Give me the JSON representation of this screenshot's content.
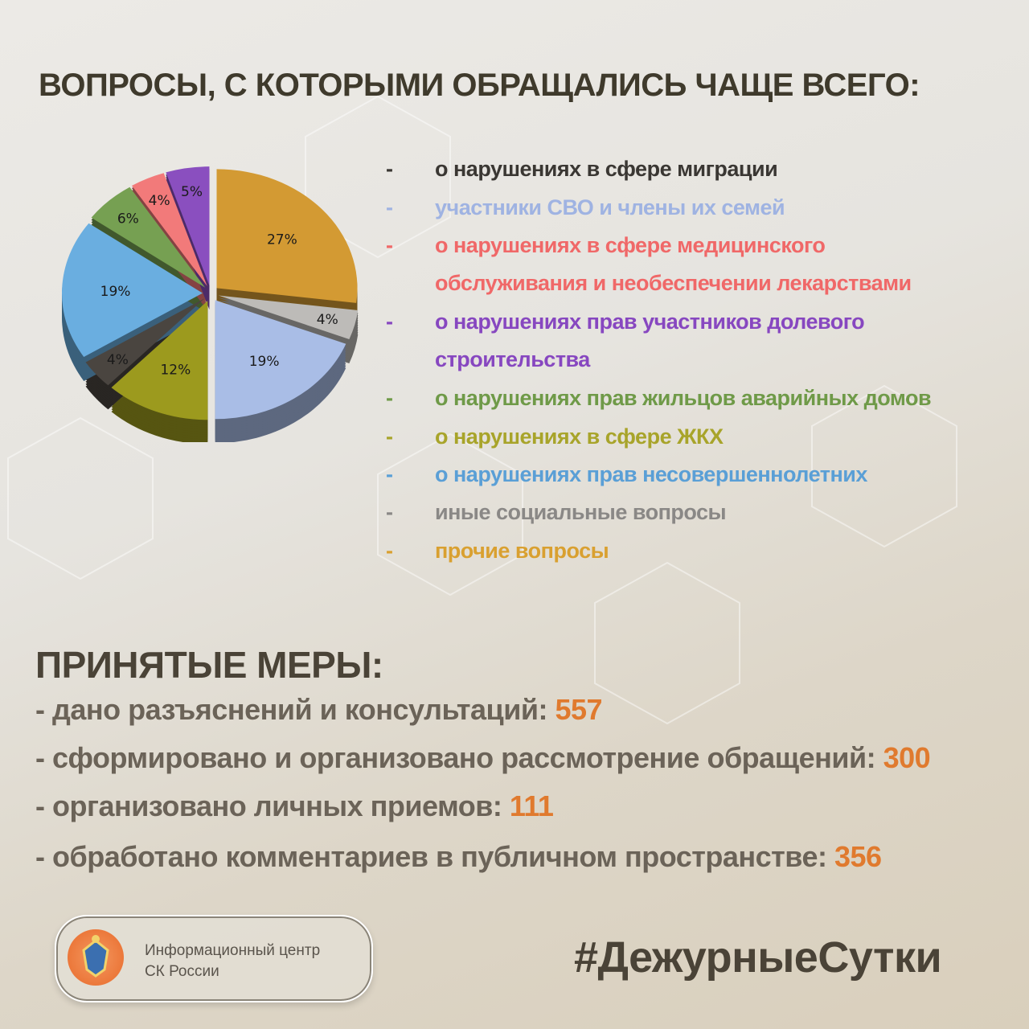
{
  "title": "ВОПРОСЫ, С КОТОРЫМИ ОБРАЩАЛИСЬ ЧАЩЕ ВСЕГО:",
  "chart_data": {
    "type": "pie",
    "style": "3d-exploded",
    "start": "12 o'clock, clockwise",
    "slices": [
      {
        "label": "прочие вопросы",
        "value": 27,
        "text": "27%",
        "color": "#d39a33"
      },
      {
        "label": "иные социальные вопросы",
        "value": 4,
        "text": "4%",
        "color": "#bdbbb8"
      },
      {
        "label": "участники СВО и члены их семей",
        "value": 19,
        "text": "19%",
        "color": "#a9bde6"
      },
      {
        "label": "о нарушениях в сфере ЖКХ",
        "value": 12,
        "text": "12%",
        "color": "#9c9a1e"
      },
      {
        "label": "о нарушениях в сфере миграции",
        "value": 4,
        "text": "4%",
        "color": "#4a4540"
      },
      {
        "label": "о нарушениях прав несовершеннолетних",
        "value": 19,
        "text": "19%",
        "color": "#6aaee0"
      },
      {
        "label": "о нарушениях прав жильцов аварийных домов",
        "value": 6,
        "text": "6%",
        "color": "#76a052"
      },
      {
        "label": "о нарушениях в сфере медицинского обслуживания и необеспечении лекарствами",
        "value": 4,
        "text": "4%",
        "color": "#f27a7a"
      },
      {
        "label": "о нарушениях прав участников долевого строительства",
        "value": 5,
        "text": "5%",
        "color": "#8a4fbf"
      }
    ]
  },
  "legend": [
    {
      "dash": "-",
      "lines": [
        "о нарушениях в сфере миграции"
      ],
      "color": "#3a3733"
    },
    {
      "dash": "-",
      "lines": [
        "участники СВО и члены их семей"
      ],
      "color": "#9fb3e2"
    },
    {
      "dash": "-",
      "lines": [
        "о нарушениях в сфере медицинского",
        "обслуживания и необеспечении лекарствами"
      ],
      "color": "#f06868"
    },
    {
      "dash": "-",
      "lines": [
        "о нарушениях прав участников долевого",
        "строительства"
      ],
      "color": "#8747c0"
    },
    {
      "dash": "-",
      "lines": [
        "о нарушениях прав жильцов аварийных домов"
      ],
      "color": "#6f9a48"
    },
    {
      "dash": "-",
      "lines": [
        "о нарушениях в сфере ЖКХ"
      ],
      "color": "#a8a42a"
    },
    {
      "dash": "-",
      "lines": [
        "о нарушениях прав несовершеннолетних"
      ],
      "color": "#5a9fd6"
    },
    {
      "dash": "-",
      "lines": [
        "иные социальные вопросы"
      ],
      "color": "#8a8886"
    },
    {
      "dash": "-",
      "lines": [
        "прочие вопросы"
      ],
      "color": "#d9a030"
    }
  ],
  "measures": {
    "title": "ПРИНЯТЫЕ МЕРЫ:",
    "items": [
      {
        "label": "- дано разъяснений и консультаций: ",
        "value": "557"
      },
      {
        "label": "- сформировано и организовано рассмотрение обращений: ",
        "value": "300"
      },
      {
        "label": "- организовано личных приемов: ",
        "value": "111"
      },
      {
        "label": "- обработано комментариев в публичном пространстве: ",
        "value": "356"
      }
    ]
  },
  "footer": {
    "logo_text_1": "Информационный центр",
    "logo_text_2": "СК России",
    "hashtag": "#ДежурныеСутки"
  }
}
